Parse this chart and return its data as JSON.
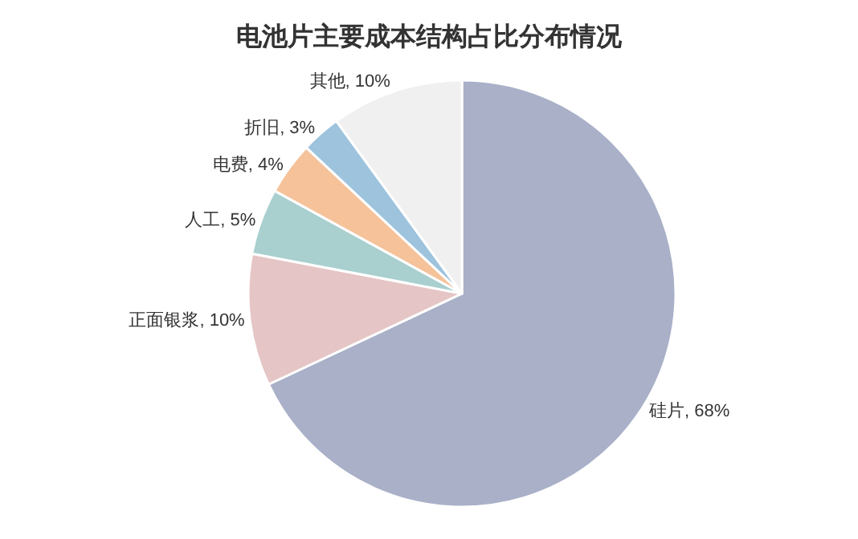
{
  "chart_data": {
    "type": "pie",
    "title": "电池片主要成本结构占比分布情况",
    "categories": [
      "硅片",
      "正面银浆",
      "人工",
      "电费",
      "折旧",
      "其他"
    ],
    "values": [
      68,
      10,
      5,
      4,
      3,
      10
    ],
    "value_labels": [
      "68%",
      "10%",
      "5%",
      "4%",
      "3%",
      "10%"
    ],
    "colors": [
      "#a9b0c8",
      "#e5c5c5",
      "#a9cfcf",
      "#f5c29a",
      "#9dc3dd",
      "#f0f0f0"
    ],
    "legend": false
  }
}
